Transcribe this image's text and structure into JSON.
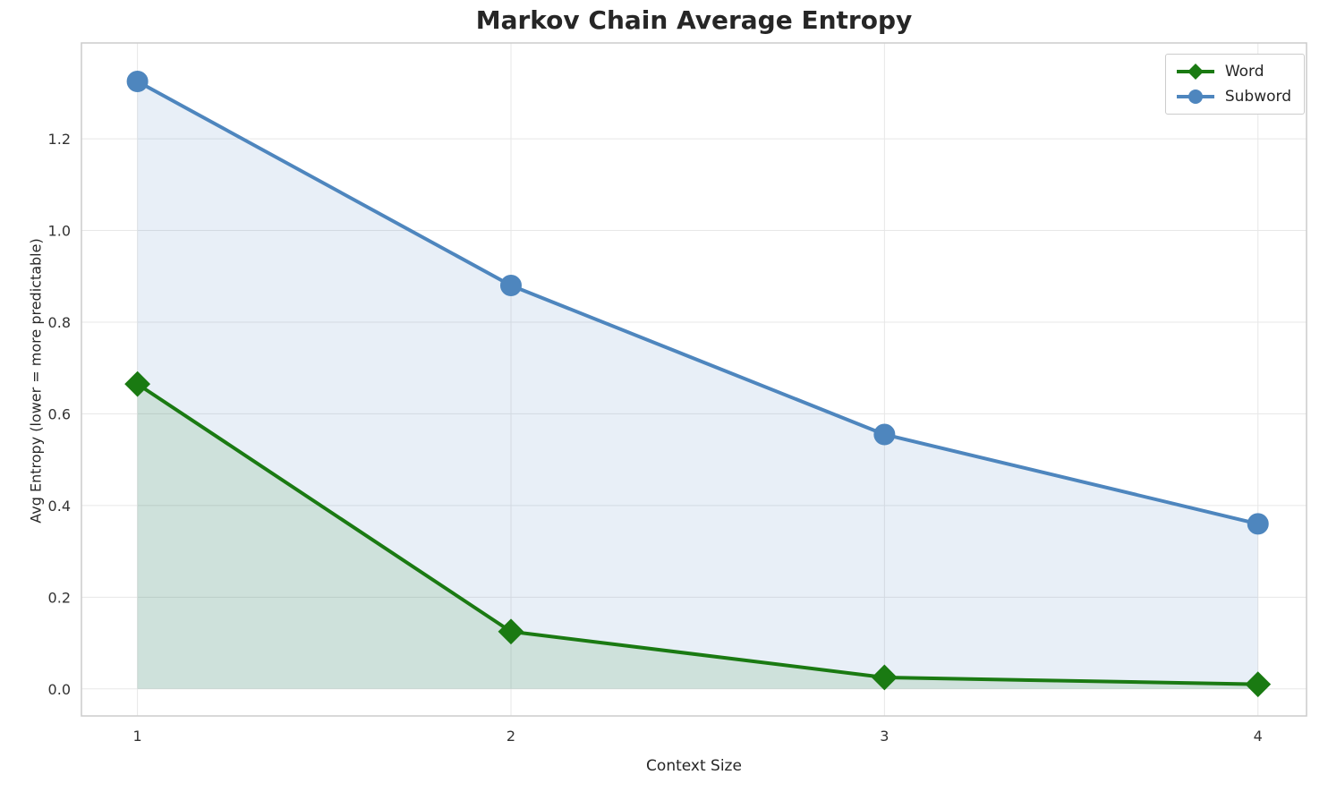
{
  "chart_data": {
    "type": "line",
    "title": "Markov Chain Average Entropy",
    "xlabel": "Context Size",
    "ylabel": "Avg Entropy (lower = more predictable)",
    "x": [
      1,
      2,
      3,
      4
    ],
    "series": [
      {
        "name": "Word",
        "values": [
          0.665,
          0.125,
          0.025,
          0.01
        ],
        "color": "#1a7a12",
        "fill": "rgba(26,122,18,0.12)",
        "marker": "diamond"
      },
      {
        "name": "Subword",
        "values": [
          1.325,
          0.88,
          0.555,
          0.36
        ],
        "color": "#4e86be",
        "fill": "rgba(78,134,190,0.13)",
        "marker": "circle"
      }
    ],
    "xticks": [
      1,
      2,
      3,
      4
    ],
    "yticks": [
      0.0,
      0.2,
      0.4,
      0.6,
      0.8,
      1.0,
      1.2
    ],
    "xlim": [
      0.85,
      4.13
    ],
    "ylim": [
      -0.059,
      1.409
    ],
    "grid": true,
    "grid_color": "#e7e7e7",
    "frame_color": "#cccccc",
    "tick_label_color": "#333333",
    "legend_position": "upper right"
  }
}
